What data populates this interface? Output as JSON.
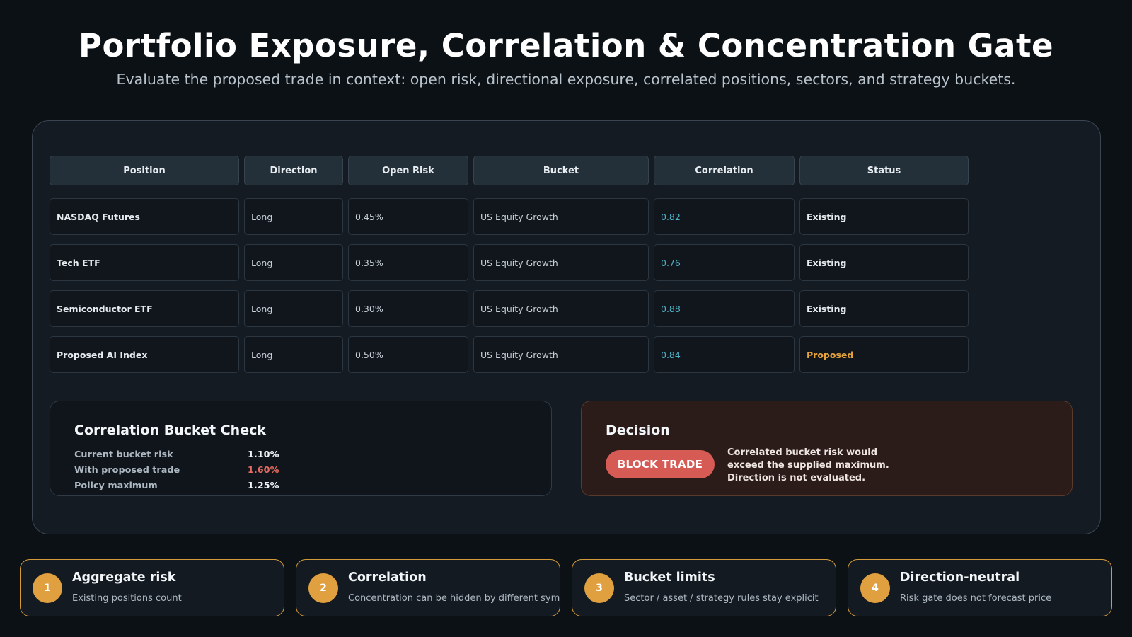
{
  "header": {
    "title": "Portfolio Exposure, Correlation & Concentration Gate",
    "subtitle": "Evaluate the proposed trade in context: open risk, directional exposure, correlated positions, sectors, and strategy buckets."
  },
  "table": {
    "columns": [
      "Position",
      "Direction",
      "Open Risk",
      "Bucket",
      "Correlation",
      "Status"
    ],
    "rows": [
      {
        "position": "NASDAQ Futures",
        "direction": "Long",
        "open_risk": "0.45%",
        "bucket": "US Equity Growth",
        "correlation": "0.82",
        "status": "Existing"
      },
      {
        "position": "Tech ETF",
        "direction": "Long",
        "open_risk": "0.35%",
        "bucket": "US Equity Growth",
        "correlation": "0.76",
        "status": "Existing"
      },
      {
        "position": "Semiconductor ETF",
        "direction": "Long",
        "open_risk": "0.30%",
        "bucket": "US Equity Growth",
        "correlation": "0.88",
        "status": "Existing"
      },
      {
        "position": "Proposed AI Index",
        "direction": "Long",
        "open_risk": "0.50%",
        "bucket": "US Equity Growth",
        "correlation": "0.84",
        "status": "Proposed"
      }
    ]
  },
  "bucket_check": {
    "title": "Correlation Bucket Check",
    "rows": [
      {
        "label": "Current bucket risk",
        "value": "1.10%"
      },
      {
        "label": "With proposed trade",
        "value": "1.60%"
      },
      {
        "label": "Policy maximum",
        "value": "1.25%"
      }
    ]
  },
  "decision": {
    "title": "Decision",
    "button_label": "BLOCK TRADE",
    "lines": [
      "Correlated bucket risk would",
      "exceed the supplied maximum.",
      "Direction is not evaluated."
    ]
  },
  "steps": [
    {
      "number": "1",
      "title": "Aggregate risk",
      "desc": "Existing positions count"
    },
    {
      "number": "2",
      "title": "Correlation",
      "desc": "Concentration can be hidden by different symbols"
    },
    {
      "number": "3",
      "title": "Bucket limits",
      "desc": "Sector / asset / strategy rules stay explicit"
    },
    {
      "number": "4",
      "title": "Direction-neutral",
      "desc": "Risk gate does not forecast price"
    }
  ],
  "colors": {
    "accent_orange": "#e0a040",
    "block_red": "#d75b55",
    "correlation_cyan": "#4fb4c9",
    "warning_red": "#e26a5e"
  }
}
